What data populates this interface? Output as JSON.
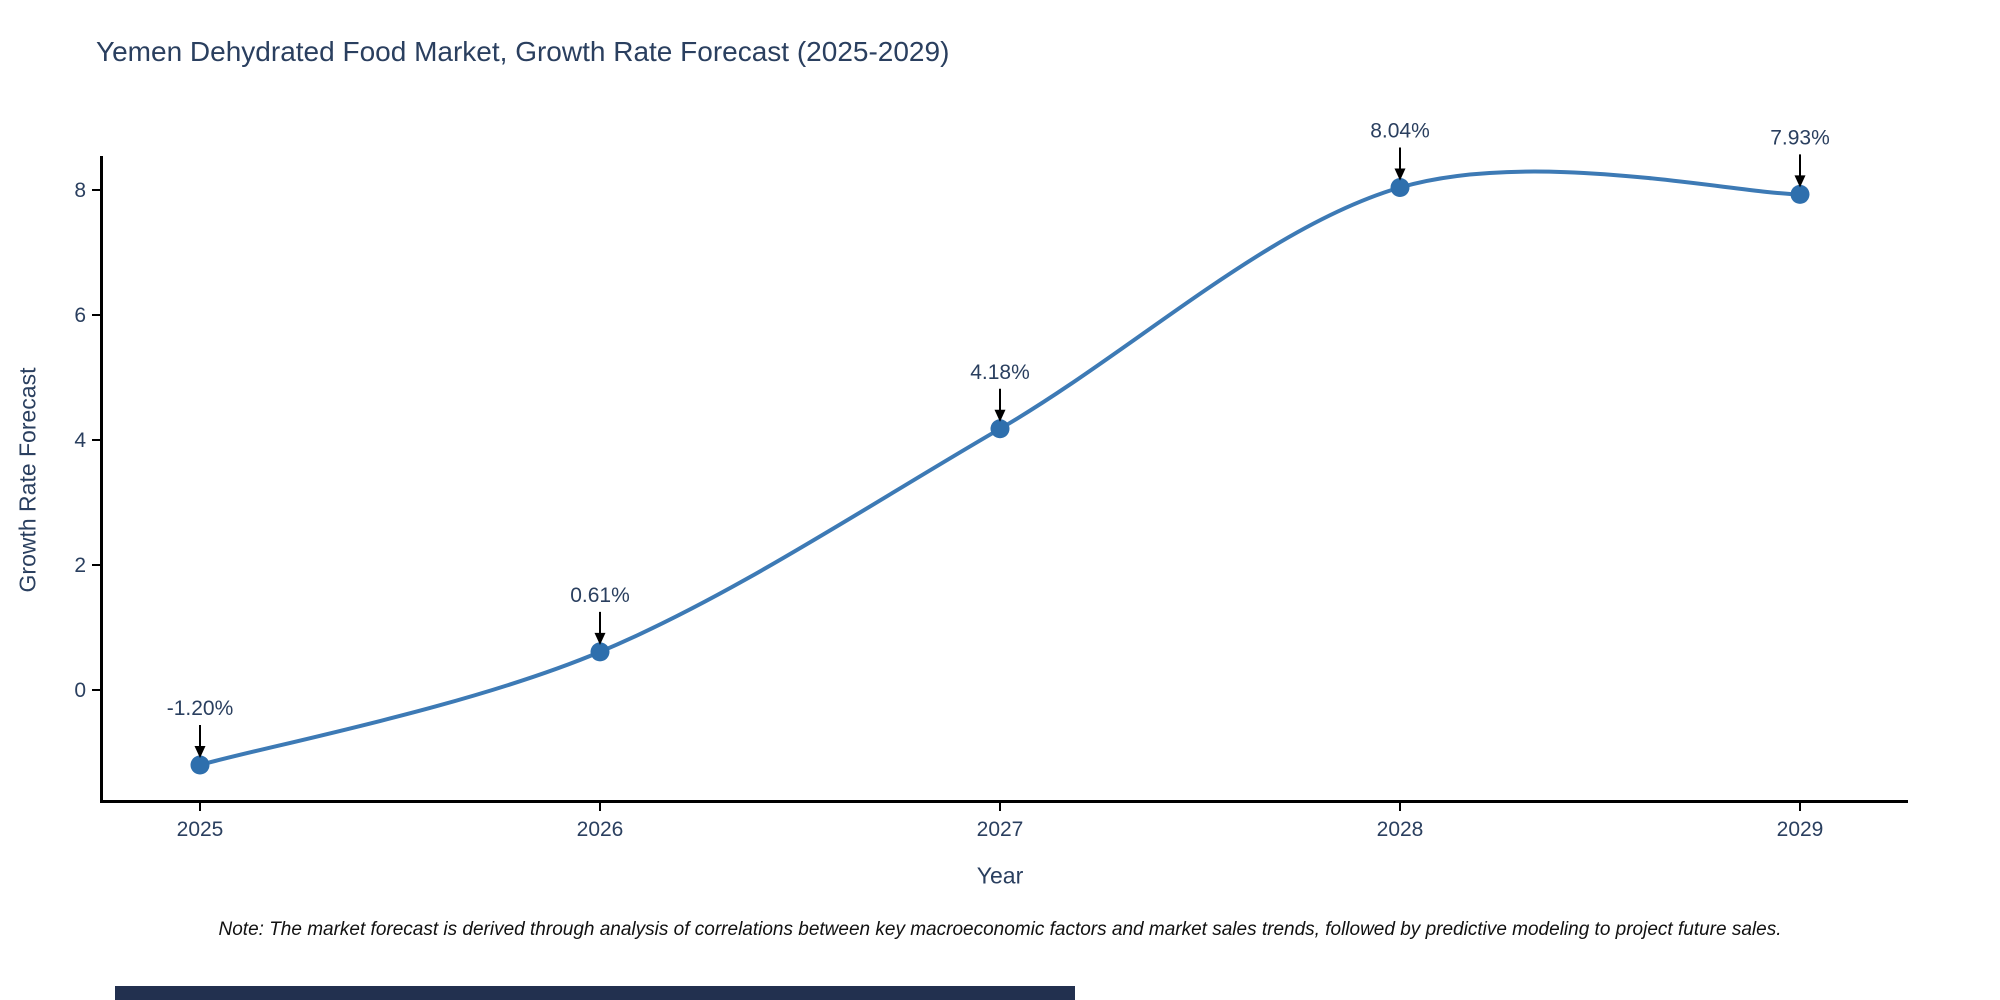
{
  "chart": {
    "title": "Yemen Dehydrated Food Market, Growth Rate Forecast (2025-2029)",
    "xlabel": "Year",
    "ylabel": "Growth Rate Forecast",
    "note": "Note: The market forecast is derived through analysis of correlations between key macroeconomic factors and market sales trends, followed by predictive modeling to project future sales."
  },
  "chart_data": {
    "type": "line",
    "title": "Yemen Dehydrated Food Market, Growth Rate Forecast (2025-2029)",
    "xlabel": "Year",
    "ylabel": "Growth Rate Forecast",
    "x": [
      2025,
      2026,
      2027,
      2028,
      2029
    ],
    "y": [
      -1.2,
      0.61,
      4.18,
      8.04,
      7.93
    ],
    "point_labels": [
      "-1.20%",
      "0.61%",
      "4.18%",
      "8.04%",
      "7.93%"
    ],
    "xticks": [
      "2025",
      "2026",
      "2027",
      "2028",
      "2029"
    ],
    "yticks": [
      0,
      2,
      4,
      6,
      8
    ],
    "ylim": [
      -1.8,
      8.5
    ],
    "grid": false,
    "legend_position": "none",
    "line_color": "#3d7ab5",
    "marker_color": "#2e6fad",
    "axis_color": "#000000",
    "annotation_arrow_color": "#000000",
    "text_color": "#2a3f5f"
  },
  "page": {
    "scrollbar_color": "#22304f"
  }
}
